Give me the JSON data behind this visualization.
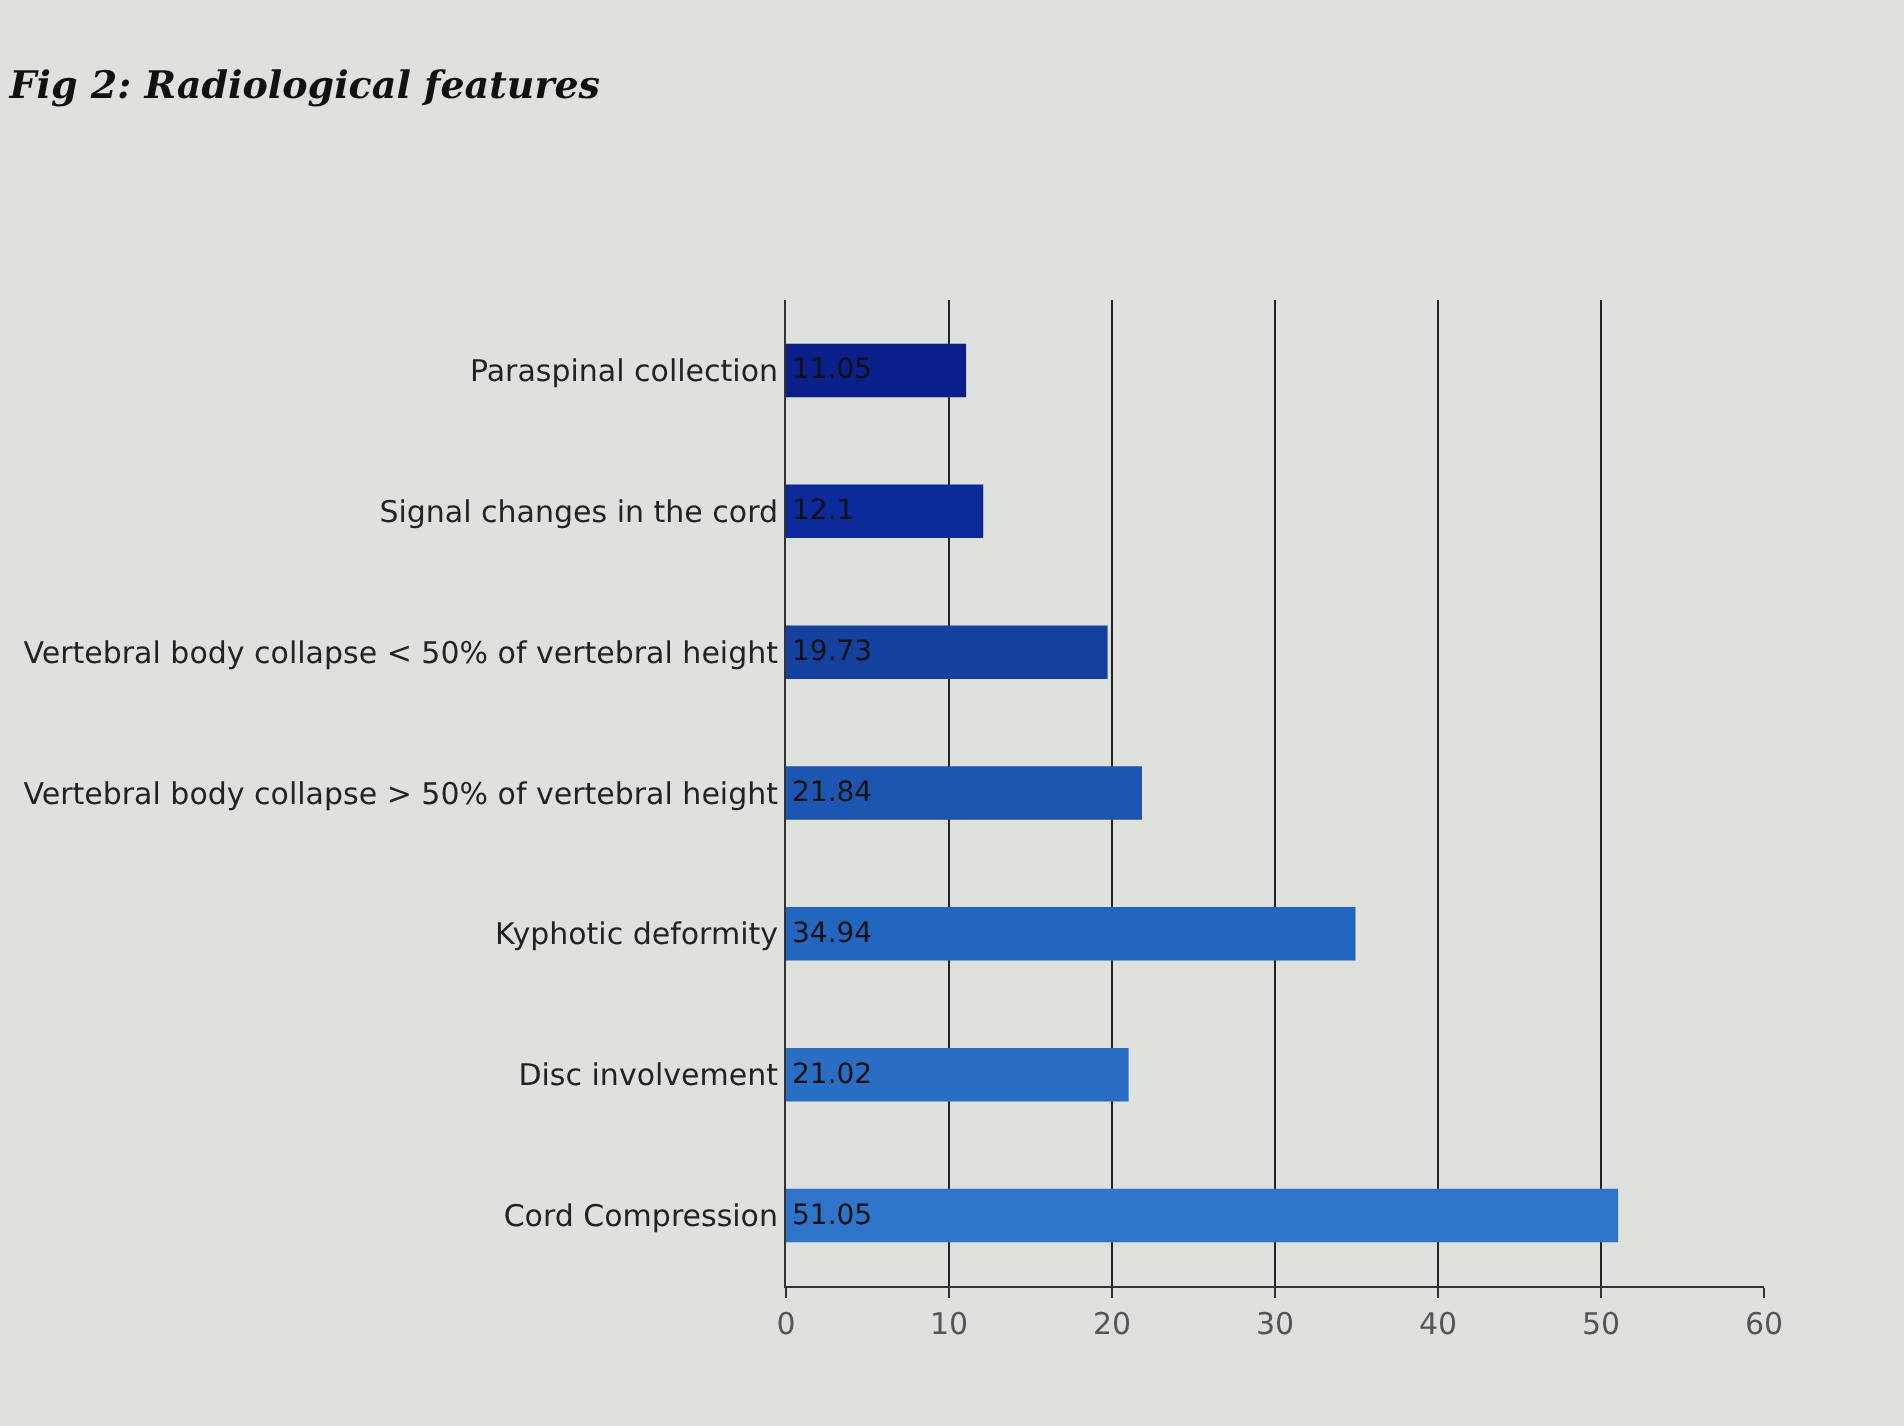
{
  "chart_data": {
    "type": "bar",
    "orientation": "horizontal",
    "title": "Fig 2: Radiological features",
    "categories": [
      "Paraspinal collection",
      "Signal changes in the cord",
      "Vertebral body collapse < 50% of vertebral height",
      "Vertebral body collapse > 50% of vertebral height",
      "Kyphotic deformity",
      "Disc involvement",
      "Cord Compression"
    ],
    "values": [
      11.05,
      12.1,
      19.73,
      21.84,
      34.94,
      21.02,
      51.05
    ],
    "colors": [
      "#0a1f8a",
      "#0d2a9a",
      "#14409e",
      "#1c56b0",
      "#2366c0",
      "#2a6ec4",
      "#2e74c8"
    ],
    "xlim": [
      0,
      60
    ],
    "xticks": [
      0,
      10,
      20,
      30,
      40,
      50,
      60
    ],
    "grid": "x",
    "data_labels": true,
    "legend": false
  }
}
